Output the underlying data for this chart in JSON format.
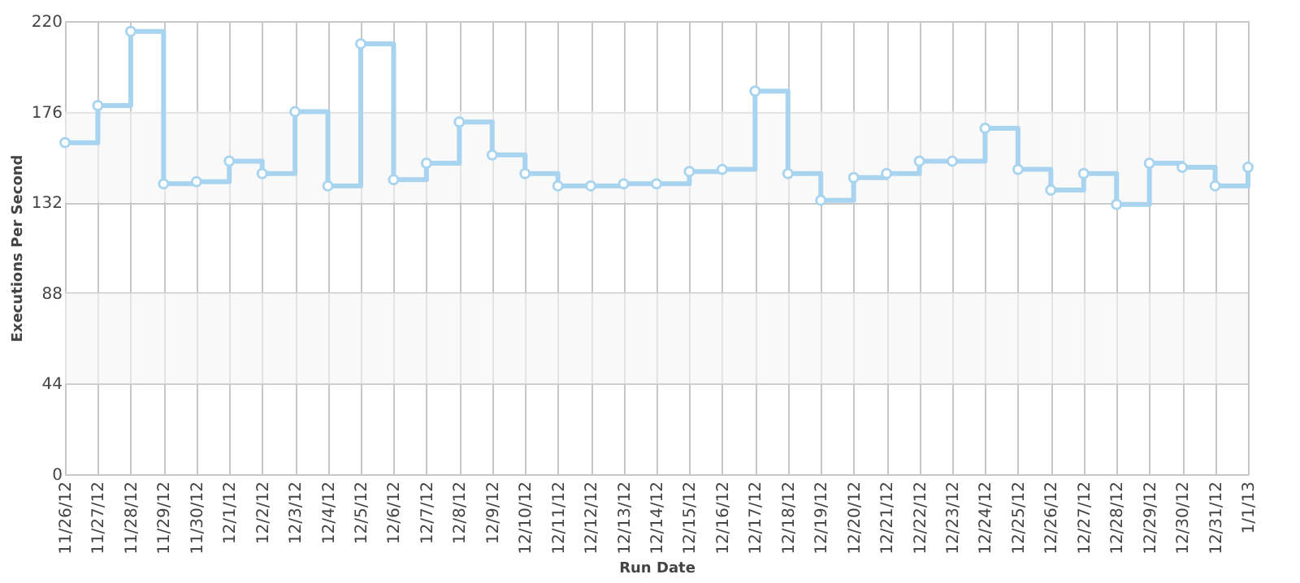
{
  "chart_data": {
    "type": "step",
    "xlabel": "Run Date",
    "ylabel": "Executions Per Second",
    "categories": [
      "11/26/12",
      "11/27/12",
      "11/28/12",
      "11/29/12",
      "11/30/12",
      "12/1/12",
      "12/2/12",
      "12/3/12",
      "12/4/12",
      "12/5/12",
      "12/6/12",
      "12/7/12",
      "12/8/12",
      "12/9/12",
      "12/10/12",
      "12/11/12",
      "12/12/12",
      "12/13/12",
      "12/14/12",
      "12/15/12",
      "12/16/12",
      "12/17/12",
      "12/18/12",
      "12/19/12",
      "12/20/12",
      "12/21/12",
      "12/22/12",
      "12/23/12",
      "12/24/12",
      "12/25/12",
      "12/26/12",
      "12/27/12",
      "12/28/12",
      "12/29/12",
      "12/30/12",
      "12/31/12",
      "1/1/13"
    ],
    "series": [
      {
        "color": "#a8d4f0",
        "values": [
          161,
          179,
          215,
          141,
          142,
          152,
          146,
          176,
          140,
          209,
          143,
          151,
          171,
          155,
          146,
          140,
          140,
          141,
          141,
          147,
          148,
          186,
          146,
          133,
          144,
          146,
          152,
          152,
          168,
          148,
          138,
          146,
          131,
          151,
          149,
          140,
          149
        ]
      }
    ],
    "ylim": [
      0,
      220
    ],
    "yticks": [
      0,
      44,
      88,
      132,
      176,
      220
    ],
    "grid": true,
    "marker": "circle",
    "bands": [
      {
        "axis": "y",
        "from": 44,
        "to": 88,
        "color": "#f5f5f5"
      },
      {
        "axis": "y",
        "from": 132,
        "to": 176,
        "color": "#f5f5f5"
      }
    ]
  }
}
